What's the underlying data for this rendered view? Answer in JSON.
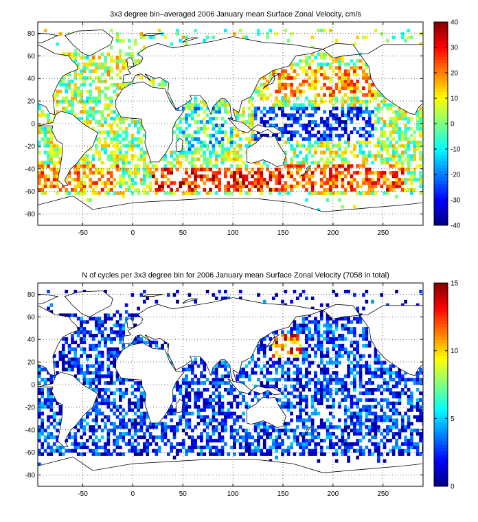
{
  "figure": {
    "background": "#ffffff"
  },
  "chart_data": [
    {
      "type": "heatmap",
      "title": "3x3 degree bin–averaged 2006 January mean Surface Zonal Velocity, cm/s",
      "xlabel": "",
      "ylabel": "",
      "x_ticks": [
        -50,
        0,
        50,
        100,
        150,
        200,
        250
      ],
      "y_ticks": [
        80,
        60,
        40,
        20,
        0,
        -20,
        -40,
        -60,
        -80
      ],
      "xlim": [
        -95,
        290
      ],
      "ylim": [
        -90,
        90
      ],
      "grid": "dotted",
      "bin_size_deg": 3,
      "colorbar": {
        "min": -40,
        "max": 40,
        "ticks": [
          40,
          30,
          20,
          10,
          0,
          -10,
          -20,
          -30,
          -40
        ],
        "colormap": "jet",
        "units": "cm/s"
      },
      "description_regions": [
        {
          "lon": [
            -95,
            -15
          ],
          "lat": [
            -60,
            -35
          ],
          "value_range": [
            5,
            30
          ]
        },
        {
          "lon": [
            -40,
            20
          ],
          "lat": [
            20,
            70
          ],
          "value_range": [
            -5,
            20
          ]
        },
        {
          "lon": [
            20,
            150
          ],
          "lat": [
            -60,
            -40
          ],
          "value_range": [
            15,
            40
          ]
        },
        {
          "lon": [
            140,
            270
          ],
          "lat": [
            -60,
            -35
          ],
          "value_range": [
            10,
            35
          ]
        },
        {
          "lon": [
            120,
            240
          ],
          "lat": [
            -15,
            15
          ],
          "value_range": [
            -40,
            -15
          ]
        },
        {
          "lon": [
            140,
            240
          ],
          "lat": [
            25,
            50
          ],
          "value_range": [
            5,
            30
          ]
        },
        {
          "lon": [
            40,
            100
          ],
          "lat": [
            -25,
            15
          ],
          "value_range": [
            -25,
            10
          ]
        }
      ]
    },
    {
      "type": "heatmap",
      "title": "N of cycles per 3x3 degree bin for 2006 January mean Surface Zonal Velocity (7058 in total)",
      "xlabel": "",
      "ylabel": "",
      "x_ticks": [
        -50,
        0,
        50,
        100,
        150,
        200,
        250
      ],
      "y_ticks": [
        80,
        60,
        40,
        20,
        0,
        -20,
        -40,
        -60,
        -80
      ],
      "xlim": [
        -95,
        290
      ],
      "ylim": [
        -90,
        90
      ],
      "grid": "dotted",
      "bin_size_deg": 3,
      "total_cycles": 7058,
      "colorbar": {
        "min": 0,
        "max": 15,
        "ticks": [
          15,
          10,
          5,
          0
        ],
        "colormap": "jet"
      },
      "description_regions": [
        {
          "lon": [
            140,
            170
          ],
          "lat": [
            25,
            45
          ],
          "value_range": [
            8,
            15
          ]
        },
        {
          "lon": [
            -95,
            290
          ],
          "lat": [
            -60,
            60
          ],
          "value_range": [
            0,
            5
          ]
        }
      ]
    }
  ]
}
